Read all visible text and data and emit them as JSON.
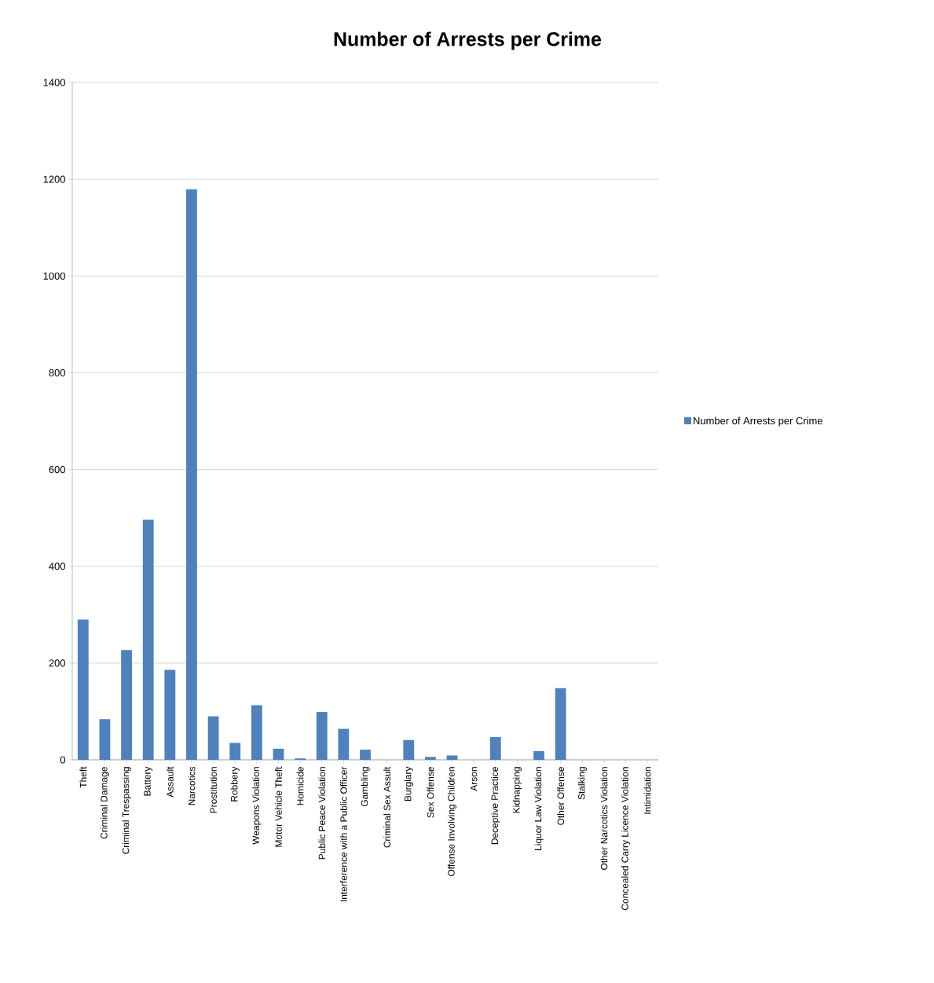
{
  "chart_data": {
    "type": "bar",
    "title": "Number of Arrests per Crime",
    "categories": [
      "Theft",
      "Criminal Damage",
      "Criminal Trespassing",
      "Battery",
      "Assault",
      "Narcotics",
      "Prostitution",
      "Robbery",
      "Weapons Violation",
      "Motor Vehicle Theft",
      "Homicide",
      "Public Peace Violation",
      "Interference with a Public Officer",
      "Gambling",
      "Criminal Sex Assult",
      "Burglary",
      "Sex Offense",
      "Offense Involving Children",
      "Arson",
      "Deceptive Practice",
      "Kidnapping",
      "Liquor Law Violation",
      "Other Offense",
      "Stalking",
      "Other Narcotics Violation",
      "Concealed Carry Licence Violation",
      "Intimidation"
    ],
    "series": [
      {
        "name": "Number of Arrests per Crime",
        "color": "#4f81bd",
        "values": [
          290,
          84,
          227,
          496,
          186,
          1179,
          90,
          35,
          113,
          23,
          3,
          99,
          64,
          21,
          0,
          41,
          6,
          9,
          0,
          47,
          0,
          18,
          148,
          0,
          0,
          0,
          0
        ]
      }
    ],
    "ylim": [
      0,
      1400
    ],
    "yticks": [
      0,
      200,
      400,
      600,
      800,
      1000,
      1200,
      1400
    ],
    "grid": "y",
    "legend": "right"
  }
}
